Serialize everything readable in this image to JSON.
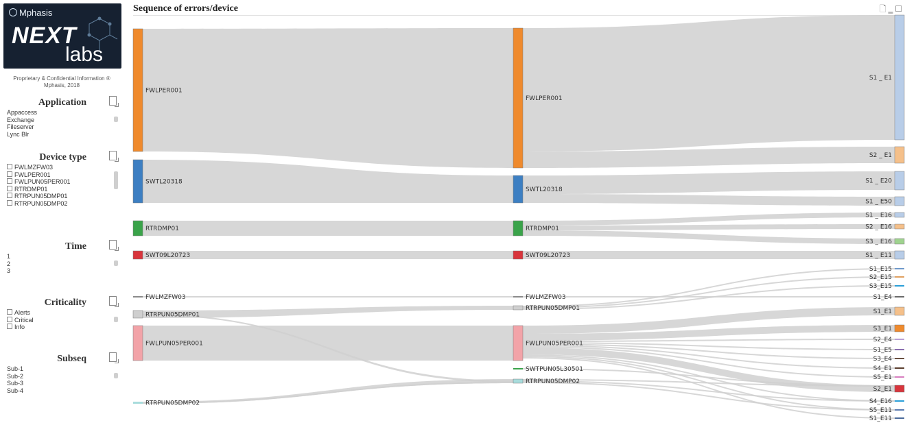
{
  "logo": {
    "company": "Mphasis",
    "product_1": "NEXT",
    "product_2": "labs"
  },
  "confidential": "Proprietary & Confidential Information ® Mphasis, 2018",
  "filters": [
    {
      "title": "Application",
      "items": [
        "Appaccess",
        "Exchange",
        "Fileserver",
        "Lync Blr"
      ],
      "checkbox": false
    },
    {
      "title": "Device type",
      "items": [
        "FWLMZFW03",
        "FWLPER001",
        "FWLPUN05PER001",
        "RTRDMP01",
        "RTRPUN05DMP01",
        "RTRPUN05DMP02"
      ],
      "checkbox": true
    },
    {
      "title": "Time",
      "items": [
        "1",
        "2",
        "3"
      ],
      "checkbox": false
    },
    {
      "title": "Criticality",
      "items": [
        "Alerts",
        "Critical",
        "Info"
      ],
      "checkbox": true
    },
    {
      "title": "Subseq",
      "items": [
        "Sub-1",
        "Sub-2",
        "Sub-3",
        "Sub-4"
      ],
      "checkbox": false
    }
  ],
  "chart": {
    "title": "Sequence of errors/device",
    "col1": [
      {
        "label": "FWLPER001",
        "color": "#ef8a2d",
        "y0": 42,
        "y1": 221
      },
      {
        "label": "SWTL20318",
        "color": "#3d7fc2",
        "y0": 233,
        "y1": 296
      },
      {
        "label": "RTRDMP01",
        "color": "#3aa34a",
        "y0": 322,
        "y1": 344
      },
      {
        "label": "SWT09L20723",
        "color": "#d8353c",
        "y0": 366,
        "y1": 378
      },
      {
        "label": "FWLMZFW03",
        "color": "#8a8a8a",
        "y0": 432,
        "y1": 434
      },
      {
        "label": "RTRPUN05DMP01",
        "color": "#cfcfcf",
        "y0": 453,
        "y1": 464
      },
      {
        "label": "FWLPUN05PER001",
        "color": "#f2a3a8",
        "y0": 475,
        "y1": 526
      },
      {
        "label": "RTRPUN05DMP02",
        "color": "#a8dcdc",
        "y0": 586,
        "y1": 589
      }
    ],
    "col2": [
      {
        "label": "FWLPER001",
        "color": "#ef8a2d",
        "y0": 41,
        "y1": 245
      },
      {
        "label": "SWTL20318",
        "color": "#3d7fc2",
        "y0": 256,
        "y1": 296
      },
      {
        "label": "RTRDMP01",
        "color": "#3aa34a",
        "y0": 322,
        "y1": 344
      },
      {
        "label": "SWT09L20723",
        "color": "#d8353c",
        "y0": 366,
        "y1": 378
      },
      {
        "label": "FWLMZFW03",
        "color": "#8a8a8a",
        "y0": 432,
        "y1": 434
      },
      {
        "label": "RTRPUN05DMP01",
        "color": "#cfcfcf",
        "y0": 446,
        "y1": 452
      },
      {
        "label": "FWLPUN05PER001",
        "color": "#f2a3a8",
        "y0": 475,
        "y1": 526
      },
      {
        "label": "SWTPUN05L30501",
        "color": "#3aa34a",
        "y0": 537,
        "y1": 539
      },
      {
        "label": "RTRPUN05DMP02",
        "color": "#a8dcdc",
        "y0": 553,
        "y1": 559
      }
    ],
    "col3": [
      {
        "label": "S1 _ E1",
        "color": "#b8cde8",
        "y0": 22,
        "y1": 204
      },
      {
        "label": "S2 _ E1",
        "color": "#f5c08a",
        "y0": 214,
        "y1": 238
      },
      {
        "label": "S1 _ E20",
        "color": "#b8cde8",
        "y0": 250,
        "y1": 277
      },
      {
        "label": "S1 _ E50",
        "color": "#b8cde8",
        "y0": 287,
        "y1": 300
      },
      {
        "label": "S1 _ E16",
        "color": "#b8cde8",
        "y0": 310,
        "y1": 317
      },
      {
        "label": "S2 _ E16",
        "color": "#f5c08a",
        "y0": 327,
        "y1": 334
      },
      {
        "label": "S3 _ E16",
        "color": "#9fd38f",
        "y0": 348,
        "y1": 356
      },
      {
        "label": "S1 _ E11",
        "color": "#b8cde8",
        "y0": 366,
        "y1": 378
      },
      {
        "label": "S1_E15",
        "color": "#6f9acb",
        "y0": 391,
        "y1": 393
      },
      {
        "label": "S2_E15",
        "color": "#e0a060",
        "y0": 403,
        "y1": 405
      },
      {
        "label": "S3_E15",
        "color": "#2a9fd8",
        "y0": 416,
        "y1": 418
      },
      {
        "label": "S1_E4",
        "color": "#6a6a6a",
        "y0": 432,
        "y1": 434
      },
      {
        "label": "S1_E1",
        "color": "#f5c08a",
        "y0": 448,
        "y1": 460
      },
      {
        "label": "S3_E1",
        "color": "#ef8a2d",
        "y0": 474,
        "y1": 484
      },
      {
        "label": "S2_E4",
        "color": "#b9a0d6",
        "y0": 494,
        "y1": 496
      },
      {
        "label": "S1_E5",
        "color": "#8a6fb0",
        "y0": 509,
        "y1": 511
      },
      {
        "label": "S3_E4",
        "color": "#6a5040",
        "y0": 522,
        "y1": 524
      },
      {
        "label": "S4_E1",
        "color": "#5a3d2d",
        "y0": 536,
        "y1": 538
      },
      {
        "label": "S5_E1",
        "color": "#d87fc0",
        "y0": 549,
        "y1": 551
      },
      {
        "label": "S2_E1",
        "color": "#d8353c",
        "y0": 562,
        "y1": 572
      },
      {
        "label": "S4_E16",
        "color": "#2a9fd8",
        "y0": 584,
        "y1": 586
      },
      {
        "label": "S5_E11",
        "color": "#5a7ab0",
        "y0": 597,
        "y1": 599
      },
      {
        "label": "S1_E11",
        "color": "#4a6a9a",
        "y0": 609,
        "y1": 611
      }
    ]
  }
}
